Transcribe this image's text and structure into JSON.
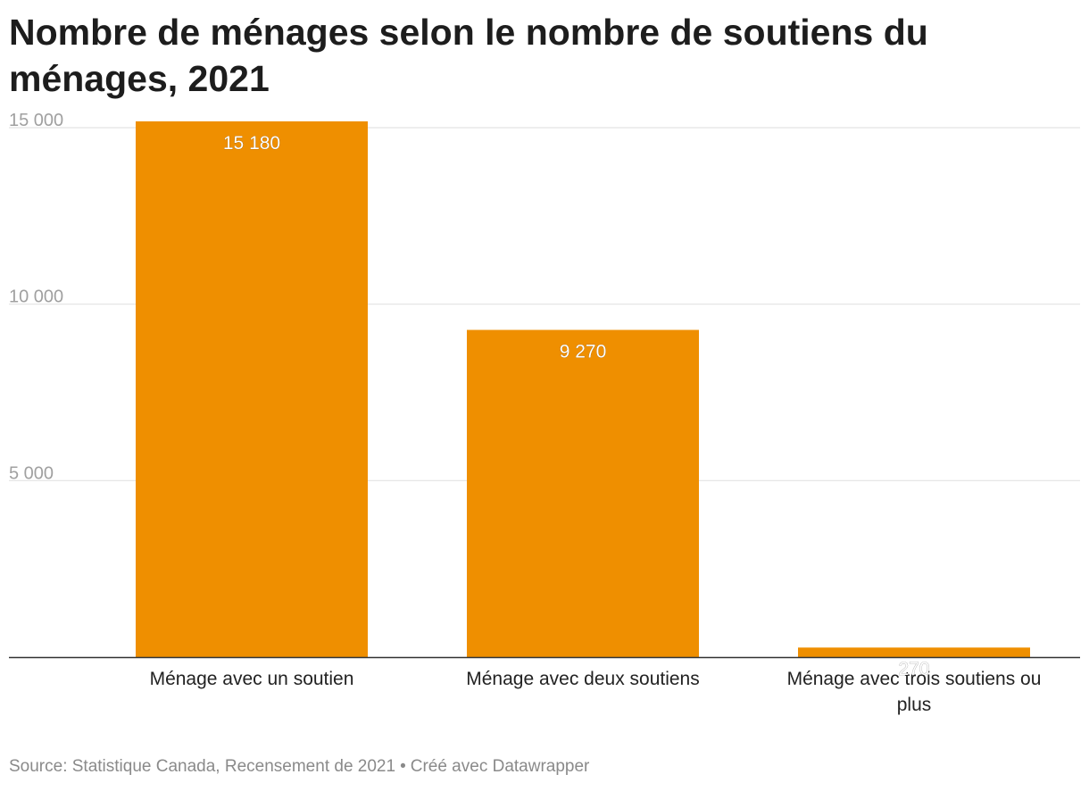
{
  "title": "Nombre de ménages selon le nombre de soutiens du ménages, 2021",
  "footer": {
    "source": "Source: Statistique Canada, Recensement de 2021",
    "separator": "•",
    "credit": "Créé avec Datawrapper"
  },
  "colors": {
    "bar": "#ef8f00",
    "grid": "#e3e3e3",
    "axis": "#333333",
    "tick_text": "#a0a0a0",
    "category_text": "#222222",
    "value_label_inside": "#ffffff",
    "value_label_small": "#ffffff"
  },
  "chart_data": {
    "type": "bar",
    "categories": [
      "Ménage avec un soutien",
      "Ménage avec deux soutiens",
      "Ménage avec trois soutiens ou plus"
    ],
    "values": [
      15180,
      9270,
      270
    ],
    "value_labels": [
      "15 180",
      "9 270",
      "270"
    ],
    "yticks": [
      5000,
      10000,
      15000
    ],
    "ytick_labels": [
      "5 000",
      "10 000",
      "15 000"
    ],
    "ylim": [
      0,
      15180
    ],
    "grid": true,
    "legend": "none"
  }
}
